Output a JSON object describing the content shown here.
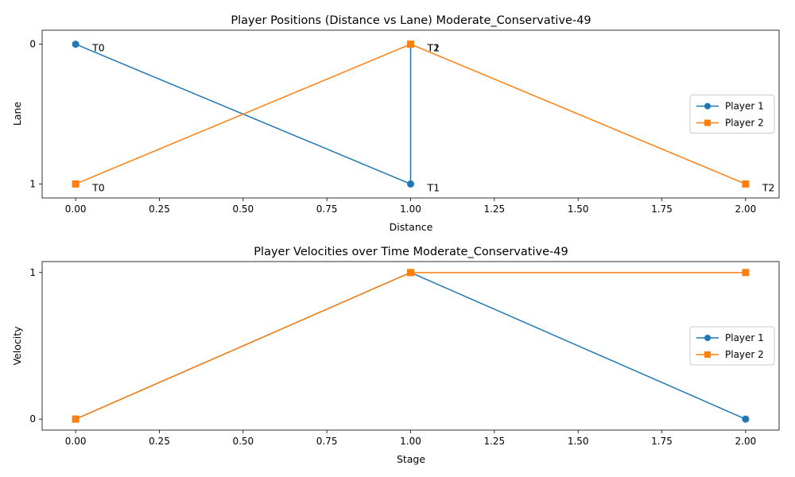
{
  "chart_data": [
    {
      "type": "line",
      "title": "Player Positions (Distance vs Lane) Moderate_Conservative-49",
      "xlabel": "Distance",
      "ylabel": "Lane",
      "xlim": [
        -0.1,
        2.1
      ],
      "ylim": [
        1.1,
        -0.1
      ],
      "y_inverted": true,
      "x_ticks": [
        0.0,
        0.25,
        0.5,
        0.75,
        1.0,
        1.25,
        1.5,
        1.75,
        2.0
      ],
      "x_tick_labels": [
        "0.00",
        "0.25",
        "0.50",
        "0.75",
        "1.00",
        "1.25",
        "1.50",
        "1.75",
        "2.00"
      ],
      "y_ticks": [
        0,
        1
      ],
      "y_tick_labels": [
        "0",
        "1"
      ],
      "legend_position": "right",
      "series": [
        {
          "name": "Player 1",
          "color": "#1f77b4",
          "marker": "circle",
          "x": [
            0,
            1,
            1
          ],
          "y": [
            0,
            1,
            0
          ],
          "labels": [
            "T0",
            "T1",
            "T2"
          ]
        },
        {
          "name": "Player 2",
          "color": "#ff7f0e",
          "marker": "square",
          "x": [
            0,
            1,
            2
          ],
          "y": [
            1,
            0,
            1
          ],
          "labels": [
            "T0",
            "T1",
            "T2"
          ]
        }
      ]
    },
    {
      "type": "line",
      "title": "Player Velocities over Time Moderate_Conservative-49",
      "xlabel": "Stage",
      "ylabel": "Velocity",
      "xlim": [
        -0.1,
        2.1
      ],
      "ylim": [
        -0.075,
        1.075
      ],
      "x_ticks": [
        0.0,
        0.25,
        0.5,
        0.75,
        1.0,
        1.25,
        1.5,
        1.75,
        2.0
      ],
      "x_tick_labels": [
        "0.00",
        "0.25",
        "0.50",
        "0.75",
        "1.00",
        "1.25",
        "1.50",
        "1.75",
        "2.00"
      ],
      "y_ticks": [
        0,
        1
      ],
      "y_tick_labels": [
        "0",
        "1"
      ],
      "legend_position": "right",
      "series": [
        {
          "name": "Player 1",
          "color": "#1f77b4",
          "marker": "circle",
          "x": [
            0,
            1,
            2
          ],
          "y": [
            0,
            1,
            0
          ]
        },
        {
          "name": "Player 2",
          "color": "#ff7f0e",
          "marker": "square",
          "x": [
            0,
            1,
            2
          ],
          "y": [
            0,
            1,
            1
          ]
        }
      ]
    }
  ]
}
